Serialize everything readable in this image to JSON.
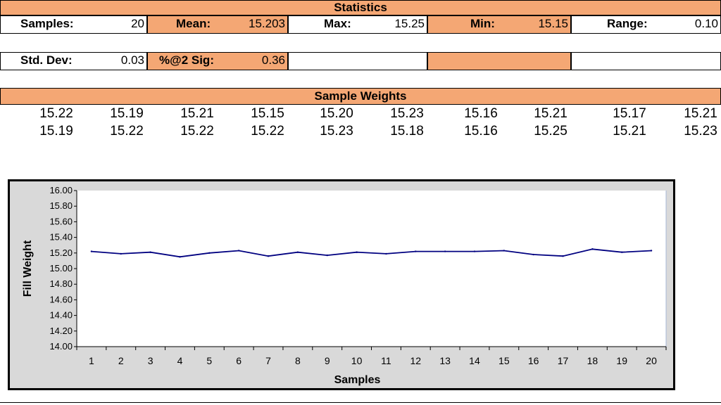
{
  "statistics": {
    "title": "Statistics",
    "samples_label": "Samples:",
    "samples_value": "20",
    "mean_label": "Mean:",
    "mean_value": "15.203",
    "max_label": "Max:",
    "max_value": "15.25",
    "min_label": "Min:",
    "min_value": "15.15",
    "range_label": "Range:",
    "range_value": "0.10",
    "std_label": "Std. Dev:",
    "std_value": "0.03",
    "sig_label": "%@2 Sig:",
    "sig_value": "0.36"
  },
  "sample_weights": {
    "title": "Sample Weights",
    "row1": [
      "15.22",
      "15.19",
      "15.21",
      "15.15",
      "15.20",
      "15.23",
      "15.16",
      "15.21",
      "15.17",
      "15.21"
    ],
    "row2": [
      "15.19",
      "15.22",
      "15.22",
      "15.22",
      "15.23",
      "15.18",
      "15.16",
      "15.25",
      "15.21",
      "15.23"
    ]
  },
  "colors": {
    "header_orange": "#f4a774",
    "line": "#000080",
    "chart_bg": "#d9d9d9"
  },
  "chart_data": {
    "type": "line",
    "title": "",
    "xlabel": "Samples",
    "ylabel": "Fill Weight",
    "x": [
      1,
      2,
      3,
      4,
      5,
      6,
      7,
      8,
      9,
      10,
      11,
      12,
      13,
      14,
      15,
      16,
      17,
      18,
      19,
      20
    ],
    "series": [
      {
        "values": [
          15.22,
          15.19,
          15.21,
          15.15,
          15.2,
          15.23,
          15.16,
          15.21,
          15.17,
          15.21,
          15.19,
          15.22,
          15.22,
          15.22,
          15.23,
          15.18,
          15.16,
          15.25,
          15.21,
          15.23
        ]
      }
    ],
    "ylim": [
      14.0,
      16.0
    ],
    "yticks": [
      "14.00",
      "14.20",
      "14.40",
      "14.60",
      "14.80",
      "15.00",
      "15.20",
      "15.40",
      "15.60",
      "15.80",
      "16.00"
    ],
    "xticks": [
      "1",
      "2",
      "3",
      "4",
      "5",
      "6",
      "7",
      "8",
      "9",
      "10",
      "11",
      "12",
      "13",
      "14",
      "15",
      "16",
      "17",
      "18",
      "19",
      "20"
    ],
    "grid": false,
    "legend": "none"
  }
}
